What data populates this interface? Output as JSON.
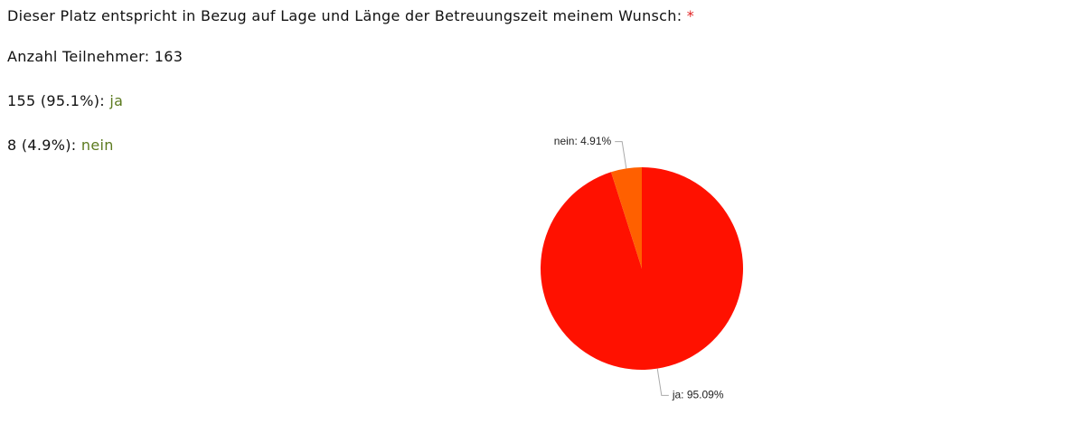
{
  "question": "Dieser Platz entspricht in Bezug auf Lage und Länge der Betreuungszeit meinem Wunsch:",
  "required_marker": "*",
  "participants": {
    "label": "Anzahl Teilnehmer:",
    "count": 163
  },
  "answers": [
    {
      "count": 155,
      "share": "(95.1%):",
      "option": "ja"
    },
    {
      "count": 8,
      "share": "(4.9%):",
      "option": "nein"
    }
  ],
  "chart_data": {
    "type": "pie",
    "values": [
      95.09,
      4.91
    ],
    "value_labels": [
      "ja: 95.09%",
      "nein: 4.91%"
    ],
    "colors": [
      "#ff1100",
      "#ff6000"
    ]
  }
}
